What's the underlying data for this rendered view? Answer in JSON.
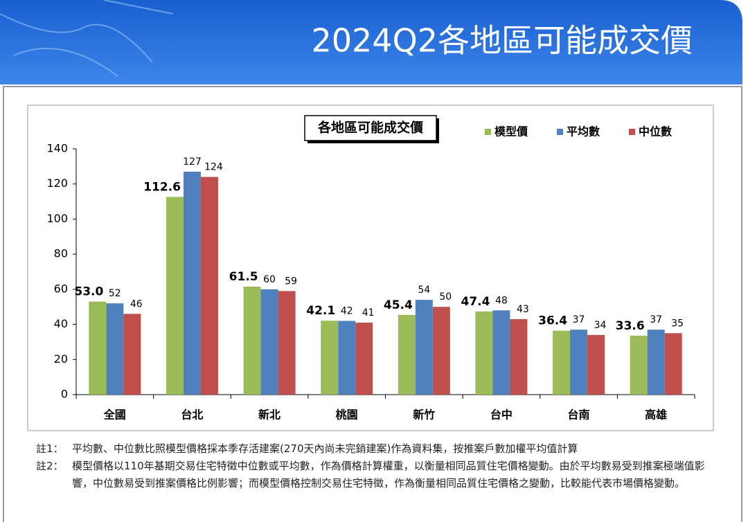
{
  "header": {
    "title": "2024Q2各地區可能成交價"
  },
  "chart_data": {
    "type": "bar",
    "title": "各地區可能成交價",
    "categories": [
      "全國",
      "台北",
      "新北",
      "桃園",
      "新竹",
      "台中",
      "台南",
      "高雄"
    ],
    "series": [
      {
        "name": "模型價",
        "color": "#9bbb59",
        "values": [
          53.0,
          112.6,
          61.5,
          42.1,
          45.4,
          47.4,
          36.4,
          33.6
        ],
        "value_labels": [
          "53.0",
          "112.6",
          "61.5",
          "42.1",
          "45.4",
          "47.4",
          "36.4",
          "33.6"
        ]
      },
      {
        "name": "平均數",
        "color": "#4f81bd",
        "values": [
          52,
          127,
          60,
          42,
          54,
          48,
          37,
          37
        ]
      },
      {
        "name": "中位數",
        "color": "#c0504d",
        "values": [
          46,
          124,
          59,
          41,
          50,
          43,
          34,
          35
        ]
      }
    ],
    "ylim": [
      0,
      140
    ],
    "yticks": [
      0,
      20,
      40,
      60,
      80,
      100,
      120,
      140
    ],
    "grid": false,
    "legend": "top-right"
  },
  "notes": [
    {
      "label": "註1：",
      "text": "平均數、中位數比照模型價格採本季存活建案(270天內尚未完銷建案)作為資料集，按推案戶數加權平均值計算"
    },
    {
      "label": "註2：",
      "text": "模型價格以110年基期交易住宅特徵中位數或平均數，作為價格計算權重，以衡量相同品質住宅價格變動。由於平均數易受到推案極端值影響，中位數易受到推案價格比例影響；而模型價格控制交易住宅特徵，作為衡量相同品質住宅價格之變動，比較能代表市場價格變動。"
    }
  ]
}
